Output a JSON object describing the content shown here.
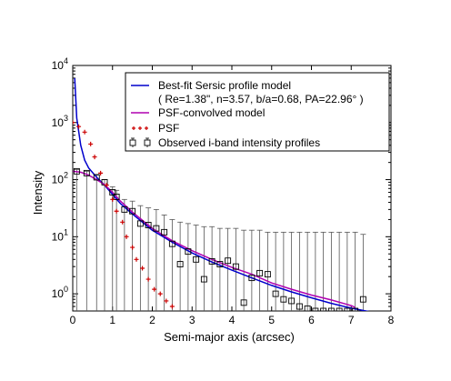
{
  "chart_data": {
    "type": "scatter",
    "title": "",
    "xlabel": "Semi-major axis (arcsec)",
    "ylabel": "Intensity",
    "xlim": [
      0,
      8
    ],
    "ylim": [
      0.5,
      10000
    ],
    "yscale": "log",
    "x_ticks": [
      0,
      1,
      2,
      3,
      4,
      5,
      6,
      7,
      8
    ],
    "y_ticks": [
      {
        "value": 1,
        "exp": "0"
      },
      {
        "value": 10,
        "exp": "1"
      },
      {
        "value": 100,
        "exp": "2"
      },
      {
        "value": 1000,
        "exp": "3"
      },
      {
        "value": 10000,
        "exp": "4"
      }
    ],
    "legend_position": "top-right",
    "legend": [
      {
        "label": "Best-fit Sersic profile model",
        "sub": "( Re=1.38\", n=3.57, b/a=0.68, PA=22.96° )",
        "marker": "line",
        "color": "#0000cc"
      },
      {
        "label": "PSF-convolved model",
        "marker": "line",
        "color": "#b000b0"
      },
      {
        "label": "PSF",
        "marker": "plus",
        "color": "#cc0000"
      },
      {
        "label": "Observed i-band intensity profiles",
        "marker": "square-errorbar",
        "color": "#000000"
      }
    ],
    "series": [
      {
        "name": "Best-fit Sersic profile model",
        "color": "#0000cc",
        "style": "line",
        "x": [
          0.05,
          0.1,
          0.2,
          0.3,
          0.4,
          0.6,
          0.8,
          1.0,
          1.2,
          1.5,
          2.0,
          2.5,
          3.0,
          3.5,
          4.0,
          4.5,
          5.0,
          5.5,
          6.0,
          6.5,
          7.0,
          7.5
        ],
        "y": [
          6000,
          1200,
          400,
          220,
          160,
          110,
          80,
          55,
          38,
          25,
          13,
          8,
          5.2,
          3.6,
          2.6,
          1.9,
          1.4,
          1.08,
          0.85,
          0.68,
          0.56,
          0.48
        ]
      },
      {
        "name": "PSF-convolved model",
        "color": "#b000b0",
        "style": "line",
        "x": [
          0.0,
          0.2,
          0.4,
          0.6,
          0.8,
          1.0,
          1.2,
          1.5,
          2.0,
          2.5,
          3.0,
          3.5,
          4.0,
          4.5,
          5.0,
          5.5,
          6.0,
          6.5,
          7.0,
          7.1
        ],
        "y": [
          140,
          135,
          120,
          100,
          82,
          60,
          42,
          27,
          14,
          8.5,
          5.7,
          4.0,
          2.9,
          2.2,
          1.55,
          1.2,
          0.95,
          0.78,
          0.62,
          0.58
        ]
      },
      {
        "name": "PSF",
        "color": "#cc0000",
        "style": "plus",
        "x": [
          0.0,
          0.15,
          0.3,
          0.45,
          0.55,
          0.7,
          0.85,
          1.0,
          1.1,
          1.25,
          1.35,
          1.5,
          1.6,
          1.75,
          1.9,
          2.05,
          2.2,
          2.35,
          2.5
        ],
        "y": [
          1000,
          850,
          680,
          420,
          250,
          130,
          80,
          45,
          28,
          18,
          10,
          6.5,
          4.0,
          2.8,
          1.8,
          1.2,
          1.0,
          0.75,
          0.6
        ]
      },
      {
        "name": "Observed i-band intensity profiles",
        "color": "#000000",
        "style": "square-errorbar",
        "x": [
          0.1,
          0.35,
          0.6,
          0.8,
          1.0,
          1.1,
          1.3,
          1.5,
          1.7,
          1.9,
          2.1,
          2.3,
          2.5,
          2.7,
          2.9,
          3.1,
          3.3,
          3.5,
          3.7,
          3.9,
          4.1,
          4.3,
          4.5,
          4.7,
          4.9,
          5.1,
          5.3,
          5.5,
          5.7,
          5.9,
          6.1,
          6.3,
          6.5,
          6.7,
          6.9,
          7.1,
          7.3
        ],
        "y": [
          140,
          130,
          110,
          90,
          60,
          50,
          30,
          28,
          17,
          16,
          14,
          12,
          7.5,
          3.3,
          5.5,
          4.0,
          1.8,
          3.7,
          3.3,
          3.8,
          3.0,
          0.7,
          1.9,
          2.3,
          2.2,
          1.0,
          0.8,
          0.75,
          0.6,
          0.55,
          0.5,
          0.5,
          0.5,
          0.5,
          0.5,
          0.5,
          0.8
        ],
        "yerr_high": [
          150,
          140,
          120,
          100,
          75,
          65,
          45,
          42,
          35,
          32,
          30,
          24,
          20,
          18,
          17,
          16,
          15,
          15,
          14,
          14,
          14,
          13,
          13,
          13,
          12,
          12,
          12,
          12,
          12,
          12,
          12,
          12,
          12,
          12,
          12,
          12,
          11
        ]
      }
    ]
  }
}
